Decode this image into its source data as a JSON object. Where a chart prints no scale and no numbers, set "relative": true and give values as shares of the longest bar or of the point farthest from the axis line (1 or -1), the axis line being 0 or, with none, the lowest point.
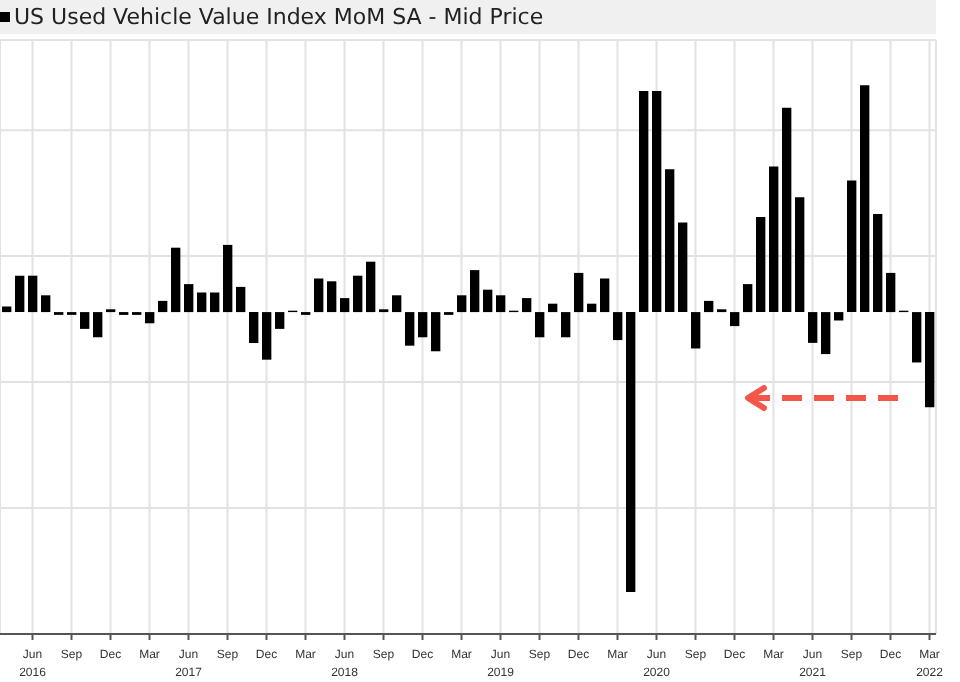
{
  "chart_data": {
    "type": "bar",
    "relative": true,
    "legend": "top left",
    "grid": true,
    "categories": [
      null,
      null,
      "Jun 2016",
      null,
      null,
      "Sep",
      null,
      null,
      "Dec",
      null,
      null,
      "Mar",
      null,
      null,
      "Jun 2017",
      null,
      null,
      "Sep",
      null,
      null,
      "Dec",
      null,
      null,
      "Mar",
      null,
      null,
      "Jun 2018",
      null,
      null,
      "Sep",
      null,
      null,
      "Dec",
      null,
      null,
      "Mar",
      null,
      null,
      "Jun 2019",
      null,
      null,
      "Sep",
      null,
      null,
      "Dec",
      null,
      null,
      "Mar",
      null,
      null,
      "Jun 2020",
      null,
      null,
      "Sep",
      null,
      null,
      "Dec",
      null,
      null,
      "Mar",
      null,
      null,
      "Jun 2021",
      null,
      null,
      "Sep",
      null,
      null,
      "Dec",
      null,
      null,
      "Mar 2022"
    ],
    "series": [
      {
        "name": "US Used Vehicle Value Index MoM SA - Mid Price",
        "color": "#000000",
        "values": [
          0.02,
          0.13,
          0.13,
          0.06,
          -0.01,
          -0.01,
          -0.06,
          -0.09,
          0.01,
          -0.01,
          -0.01,
          -0.04,
          0.04,
          0.23,
          0.1,
          0.07,
          0.07,
          0.24,
          0.09,
          -0.11,
          -0.17,
          -0.06,
          0.005,
          -0.01,
          0.12,
          0.11,
          0.05,
          0.13,
          0.18,
          0.01,
          0.06,
          -0.12,
          -0.09,
          -0.14,
          -0.01,
          0.06,
          0.15,
          0.08,
          0.06,
          0.005,
          0.05,
          -0.09,
          0.03,
          -0.09,
          0.14,
          0.03,
          0.12,
          -0.1,
          -1,
          0.79,
          0.79,
          0.51,
          0.32,
          -0.13,
          0.04,
          0.01,
          -0.05,
          0.1,
          0.34,
          0.52,
          0.73,
          0.41,
          -0.11,
          -0.15,
          -0.03,
          0.47,
          0.81,
          0.35,
          0.14,
          0.005,
          -0.18,
          -0.34
        ]
      }
    ]
  }
}
